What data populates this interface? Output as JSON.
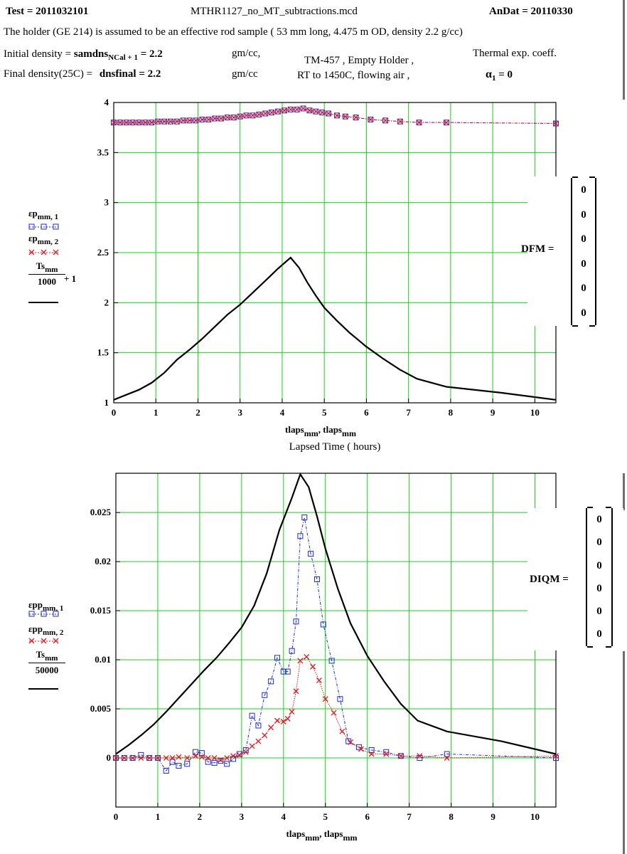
{
  "header": {
    "test_label": "Test = 2011032101",
    "filename": "MTHR1127_no_MT_subtractions.mcd",
    "andat_label": "AnDat = 20110330",
    "description": "The holder (GE 214) is assumed to be an effective rod sample ( 53 mm long, 4.475 m OD, density 2.2 g/cc)",
    "initial_density_label": "Initial density =",
    "initial_density_var": "samdns",
    "initial_density_sub": "NCal + 1",
    "initial_density_value": "= 2.2",
    "initial_density_units": "gm/cc,",
    "final_density_label": "Final density(25C) =",
    "final_density_expr": "dnsfinal = 2.2",
    "final_density_units": "gm/cc",
    "run_line1": "TM-457 , Empty Holder ,",
    "run_line2": "RT to 1450C, flowing air ,",
    "thermal_label": "Thermal exp. coeff.",
    "alpha_expr": "α",
    "alpha_sub": "1",
    "alpha_value": "= 0"
  },
  "dfm": {
    "label": "DFM =",
    "values": [
      "0",
      "0",
      "0",
      "0",
      "0",
      "0"
    ]
  },
  "diqm": {
    "label": "DIQM =",
    "values": [
      "0",
      "0",
      "0",
      "0",
      "0",
      "0"
    ]
  },
  "chart1_legend": {
    "s1": "εp",
    "s1_sub": "mm, 1",
    "s2": "εp",
    "s2_sub": "mm, 2",
    "s3_num": "Ts",
    "s3_num_sub": "mm",
    "s3_den": "1000",
    "s3_suffix": "+ 1"
  },
  "chart2_legend": {
    "s1": "εpp",
    "s1_sub": "mm, 1",
    "s2": "εpp",
    "s2_sub": "mm, 2",
    "s3_num": "Ts",
    "s3_num_sub": "mm",
    "s3_den": "50000"
  },
  "chart_data": [
    {
      "type": "line",
      "xlabel": "tlaps_mm, tlaps_mm",
      "xlabel_main": "tlaps",
      "xlabel_sub": "mm",
      "xlabel_sep": ", tlaps",
      "caption": "Lapsed Time ( hours)",
      "xlim": [
        0,
        10.5
      ],
      "ylim": [
        1,
        4
      ],
      "xticks": [
        "0",
        "1",
        "2",
        "3",
        "4",
        "5",
        "6",
        "7",
        "8",
        "9",
        "10"
      ],
      "yticks": [
        "1",
        "1.5",
        "2",
        "2.5",
        "3",
        "3.5",
        "4"
      ],
      "grid": true,
      "series": [
        {
          "name": "εp mm, 1",
          "color": "#1a2bd6",
          "marker": "square",
          "x": [
            0,
            0.15,
            0.3,
            0.45,
            0.6,
            0.75,
            0.9,
            1.05,
            1.2,
            1.35,
            1.5,
            1.65,
            1.8,
            1.95,
            2.1,
            2.25,
            2.4,
            2.55,
            2.7,
            2.85,
            3.0,
            3.15,
            3.3,
            3.45,
            3.6,
            3.75,
            3.9,
            4.05,
            4.2,
            4.35,
            4.5,
            4.65,
            4.8,
            4.95,
            5.1,
            5.3,
            5.5,
            5.75,
            6.1,
            6.45,
            6.8,
            7.25,
            7.9,
            10.5
          ],
          "y": [
            3.8,
            3.8,
            3.8,
            3.8,
            3.8,
            3.8,
            3.8,
            3.81,
            3.81,
            3.81,
            3.81,
            3.82,
            3.82,
            3.82,
            3.83,
            3.83,
            3.84,
            3.84,
            3.85,
            3.85,
            3.86,
            3.87,
            3.87,
            3.88,
            3.89,
            3.9,
            3.91,
            3.92,
            3.93,
            3.93,
            3.94,
            3.92,
            3.91,
            3.9,
            3.89,
            3.87,
            3.86,
            3.85,
            3.83,
            3.82,
            3.81,
            3.8,
            3.8,
            3.79
          ]
        },
        {
          "name": "εp mm, 2",
          "color": "#e8141b",
          "marker": "x",
          "x": [
            0,
            0.15,
            0.3,
            0.45,
            0.6,
            0.75,
            0.9,
            1.05,
            1.2,
            1.35,
            1.5,
            1.65,
            1.8,
            1.95,
            2.1,
            2.25,
            2.4,
            2.55,
            2.7,
            2.85,
            3.0,
            3.15,
            3.3,
            3.45,
            3.6,
            3.75,
            3.9,
            4.05,
            4.2,
            4.35,
            4.5,
            4.65,
            4.8,
            4.95,
            5.1,
            5.3,
            5.5,
            5.75,
            6.1,
            6.45,
            6.8,
            7.25,
            7.9,
            10.5
          ],
          "y": [
            3.8,
            3.8,
            3.8,
            3.8,
            3.8,
            3.8,
            3.8,
            3.81,
            3.81,
            3.81,
            3.81,
            3.82,
            3.82,
            3.82,
            3.83,
            3.83,
            3.84,
            3.84,
            3.85,
            3.85,
            3.86,
            3.87,
            3.87,
            3.88,
            3.89,
            3.9,
            3.91,
            3.92,
            3.93,
            3.93,
            3.94,
            3.92,
            3.91,
            3.9,
            3.89,
            3.87,
            3.86,
            3.85,
            3.83,
            3.82,
            3.81,
            3.8,
            3.8,
            3.79
          ]
        },
        {
          "name": "Ts mm / 1000 + 1",
          "color": "#000000",
          "marker": "none",
          "x": [
            0,
            0.3,
            0.6,
            0.9,
            1.2,
            1.5,
            1.8,
            2.1,
            2.4,
            2.7,
            3.0,
            3.3,
            3.6,
            3.9,
            4.2,
            4.4,
            4.6,
            4.8,
            5.0,
            5.3,
            5.6,
            6.0,
            6.4,
            6.8,
            7.2,
            7.9,
            9.2,
            10.5
          ],
          "y": [
            1.03,
            1.08,
            1.13,
            1.2,
            1.3,
            1.43,
            1.53,
            1.64,
            1.76,
            1.88,
            1.98,
            2.1,
            2.22,
            2.34,
            2.45,
            2.35,
            2.2,
            2.07,
            1.95,
            1.82,
            1.7,
            1.56,
            1.44,
            1.33,
            1.24,
            1.16,
            1.1,
            1.03
          ]
        }
      ]
    },
    {
      "type": "line",
      "xlabel": "tlaps_mm, tlaps_mm",
      "xlabel_main": "tlaps",
      "xlabel_sub": "mm",
      "xlabel_sep": ", tlaps",
      "xlim": [
        0,
        10.5
      ],
      "ylim": [
        -0.005,
        0.029
      ],
      "xticks": [
        "0",
        "1",
        "2",
        "3",
        "4",
        "5",
        "6",
        "7",
        "8",
        "9",
        "10"
      ],
      "yticks": [
        "0",
        "0.005",
        "0.01",
        "0.015",
        "0.02",
        "0.025"
      ],
      "grid": true,
      "series": [
        {
          "name": "εpp mm, 1",
          "color": "#1a2bd6",
          "marker": "square",
          "x": [
            0,
            0.2,
            0.4,
            0.6,
            0.8,
            1.0,
            1.2,
            1.35,
            1.5,
            1.7,
            1.9,
            2.05,
            2.2,
            2.35,
            2.5,
            2.65,
            2.8,
            2.95,
            3.1,
            3.25,
            3.4,
            3.55,
            3.7,
            3.85,
            4.0,
            4.1,
            4.2,
            4.3,
            4.4,
            4.5,
            4.65,
            4.8,
            4.95,
            5.15,
            5.35,
            5.55,
            5.8,
            6.1,
            6.45,
            6.8,
            7.25,
            7.9,
            10.5
          ],
          "y": [
            0.0,
            0.0,
            0.0,
            0.0003,
            0.0,
            0.0,
            -0.0013,
            -0.0004,
            -0.0008,
            -0.0006,
            0.0006,
            0.0005,
            -0.0004,
            -0.0005,
            -0.0003,
            -0.0006,
            -0.0001,
            0.0004,
            0.0008,
            0.0043,
            0.0033,
            0.0064,
            0.0078,
            0.0102,
            0.0088,
            0.0088,
            0.0109,
            0.0139,
            0.0226,
            0.0245,
            0.0208,
            0.0182,
            0.0136,
            0.0099,
            0.006,
            0.0017,
            0.0011,
            0.0008,
            0.0006,
            0.0002,
            0.0,
            0.0004,
            0.0
          ]
        },
        {
          "name": "εpp mm, 2",
          "color": "#e8141b",
          "marker": "x",
          "x": [
            0,
            0.2,
            0.4,
            0.6,
            0.8,
            1.0,
            1.2,
            1.35,
            1.5,
            1.7,
            1.9,
            2.05,
            2.2,
            2.35,
            2.5,
            2.65,
            2.8,
            2.95,
            3.1,
            3.25,
            3.4,
            3.55,
            3.7,
            3.85,
            4.0,
            4.1,
            4.2,
            4.3,
            4.4,
            4.55,
            4.7,
            4.85,
            5.0,
            5.2,
            5.4,
            5.6,
            5.85,
            6.1,
            6.45,
            6.8,
            7.25,
            7.9,
            10.5
          ],
          "y": [
            0.0,
            0.0,
            0.0,
            0.0,
            0.0,
            0.0,
            0.0,
            0.0,
            0.0001,
            0.0,
            0.0002,
            0.0001,
            0.0,
            0.0,
            -0.0002,
            0.0,
            0.0002,
            0.0003,
            0.0006,
            0.0012,
            0.0017,
            0.0023,
            0.0031,
            0.0038,
            0.0037,
            0.004,
            0.0047,
            0.0068,
            0.0099,
            0.0103,
            0.0093,
            0.0079,
            0.006,
            0.0046,
            0.0027,
            0.0016,
            0.0009,
            0.0004,
            0.0004,
            0.0002,
            0.0002,
            0.0,
            0.0002
          ]
        },
        {
          "name": "Ts mm / 50000",
          "color": "#000000",
          "marker": "none",
          "x": [
            0,
            0.3,
            0.6,
            0.9,
            1.2,
            1.5,
            1.8,
            2.1,
            2.4,
            2.7,
            3.0,
            3.3,
            3.6,
            3.9,
            4.2,
            4.4,
            4.6,
            4.8,
            5.0,
            5.3,
            5.6,
            6.0,
            6.4,
            6.8,
            7.2,
            7.9,
            9.2,
            10.5
          ],
          "y": [
            0.0004,
            0.0013,
            0.0023,
            0.0034,
            0.0047,
            0.0061,
            0.0075,
            0.0089,
            0.0102,
            0.0117,
            0.0133,
            0.0155,
            0.0188,
            0.0232,
            0.0265,
            0.0289,
            0.0276,
            0.0246,
            0.0213,
            0.0172,
            0.0137,
            0.0104,
            0.0078,
            0.0055,
            0.0038,
            0.0027,
            0.0017,
            0.0004
          ]
        }
      ]
    }
  ]
}
